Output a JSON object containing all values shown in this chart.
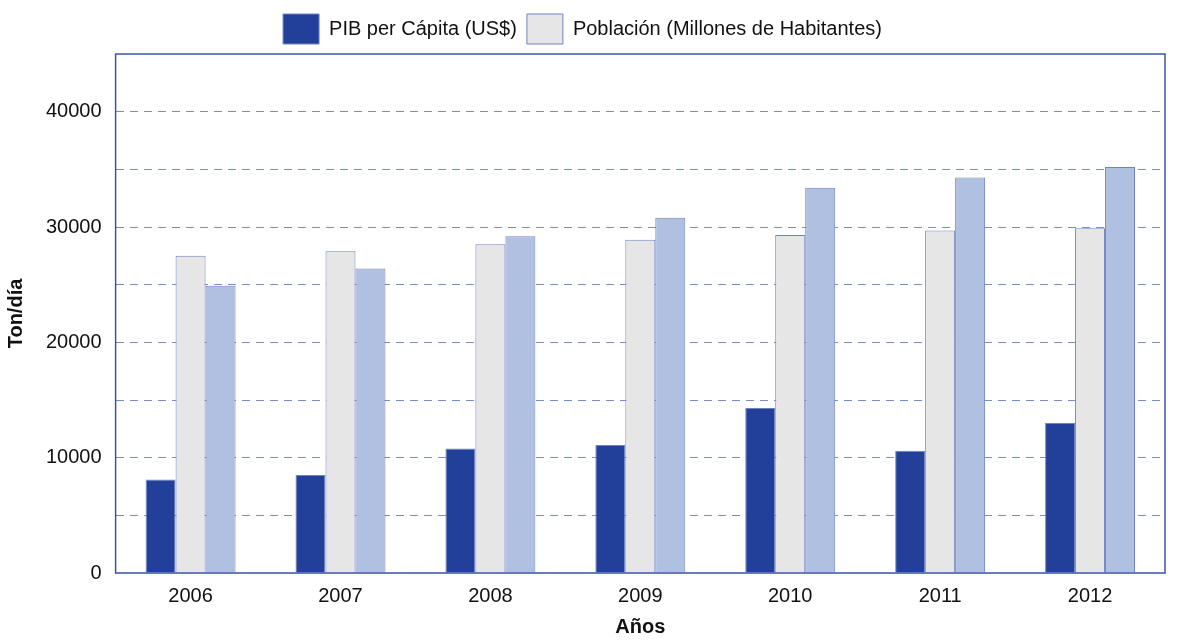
{
  "chart_data": {
    "type": "bar",
    "xlabel": "Años",
    "ylabel": "Ton/día",
    "categories": [
      "2006",
      "2007",
      "2008",
      "2009",
      "2010",
      "2011",
      "2012"
    ],
    "series": [
      {
        "name": "PIB per Cápita (US$)",
        "color": "#22409a",
        "values": [
          8100,
          8500,
          10800,
          11100,
          14300,
          10600,
          13000
        ]
      },
      {
        "name": "Población (Millones de Habitantes)",
        "color": "#e6e6e6",
        "values": [
          27500,
          27900,
          28500,
          28900,
          29300,
          29700,
          29900
        ]
      },
      {
        "color": "#b0c0e0",
        "values": [
          24900,
          26400,
          29200,
          30800,
          33400,
          34300,
          35200
        ]
      }
    ],
    "ylim": [
      0,
      45000
    ],
    "yticks": [
      0,
      {
        "value": 5000,
        "label": null
      },
      10000,
      {
        "value": 15000,
        "label": null
      },
      20000,
      {
        "value": 25000,
        "label": null
      },
      30000,
      {
        "value": 35000,
        "label": null
      },
      40000
    ],
    "grid": "y",
    "legend": "top"
  }
}
